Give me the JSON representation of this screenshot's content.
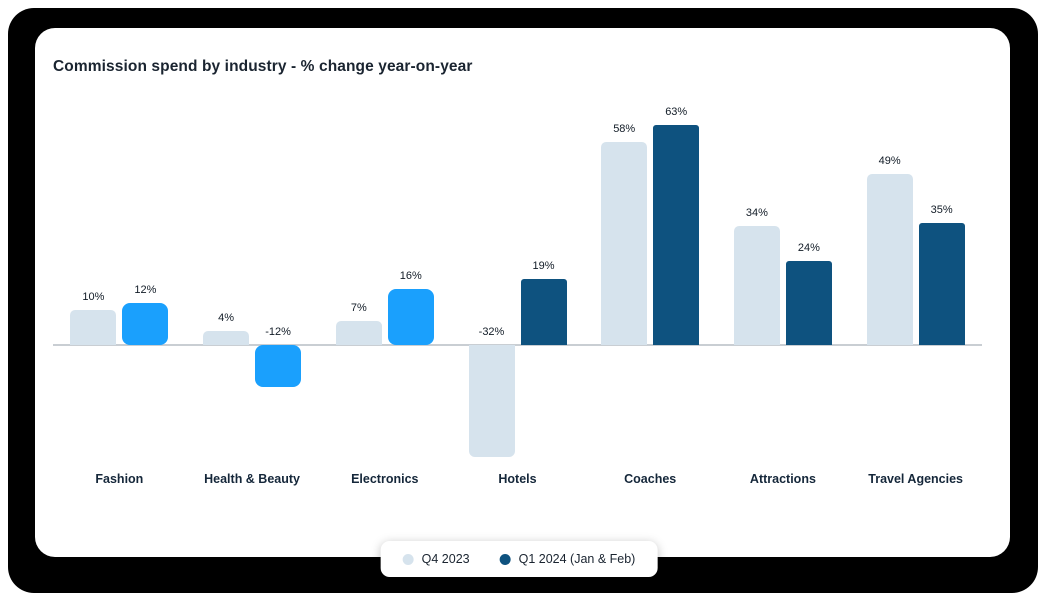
{
  "card": {
    "title": "Commission spend by industry - % change year-on-year"
  },
  "chart_data": {
    "type": "bar",
    "title": "Commission spend by industry - % change year-on-year",
    "categories": [
      "Fashion",
      "Health & Beauty",
      "Electronics",
      "Hotels",
      "Coaches",
      "Attractions",
      "Travel Agencies"
    ],
    "series": [
      {
        "name": "Q4 2023",
        "values": [
          10,
          4,
          7,
          -32,
          58,
          34,
          49
        ],
        "color": "#d6e3ed"
      },
      {
        "name": "Q1 2024 (Jan & Feb)",
        "values": [
          12,
          -12,
          16,
          19,
          63,
          24,
          35
        ],
        "colors": [
          "#1aa0fd",
          "#1aa0fd",
          "#1aa0fd",
          "#0e527f",
          "#0e527f",
          "#0e527f",
          "#0e527f"
        ]
      }
    ],
    "unit": "%",
    "ylim": [
      -40,
      70
    ],
    "baseline": 0,
    "value_labels": true,
    "grid": false,
    "legend_position": "bottom-center"
  },
  "legend": {
    "items": [
      {
        "label": "Q4 2023",
        "color": "#d6e3ed"
      },
      {
        "label": "Q1 2024 (Jan & Feb)",
        "color": "#0e527f"
      }
    ]
  },
  "colors": {
    "frame": "#000000",
    "card_bg": "#ffffff",
    "bright_blue": "#1aa0fd",
    "dark_blue": "#0e527f",
    "light_series": "#d6e3ed",
    "axis_line": "#c9ced3"
  }
}
